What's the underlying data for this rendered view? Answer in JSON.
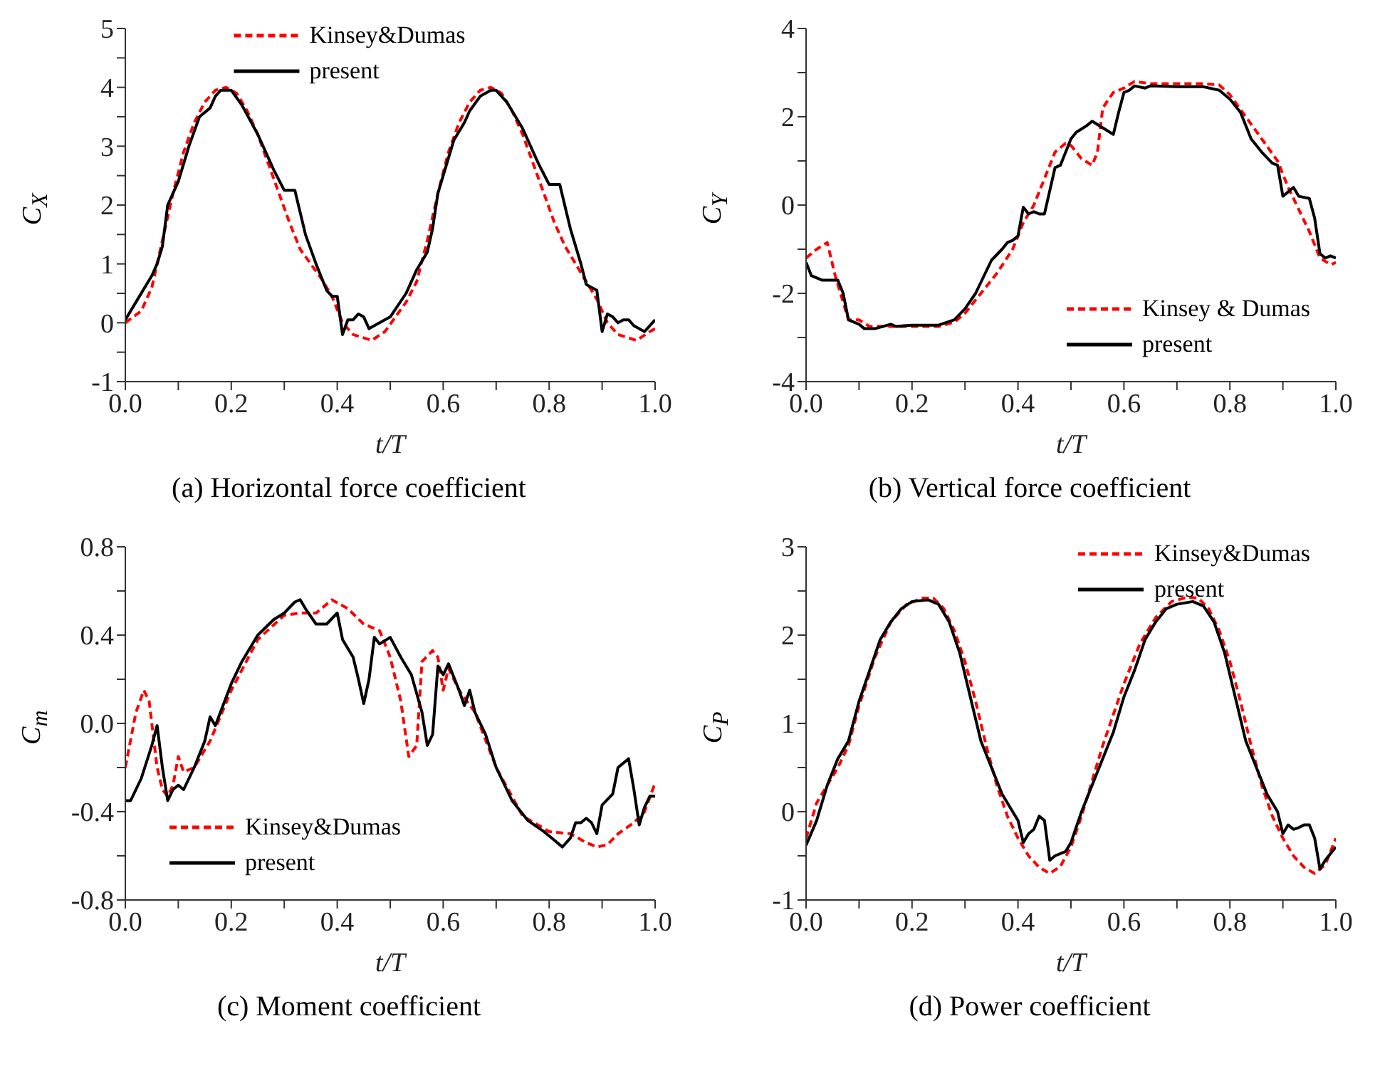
{
  "chart_data": [
    {
      "type": "line",
      "title": "(a) Horizontal force coefficient",
      "xlabel": "t/T",
      "ylabel": "C$_{X}$",
      "legend": "top",
      "grid": false,
      "marker": "none",
      "xlim": [
        0,
        1
      ],
      "xticks": [
        {
          "value": 0,
          "label": "0.0"
        },
        {
          "value": 0.1,
          "label": null
        },
        0.2,
        {
          "value": 0.3,
          "label": null
        },
        0.4,
        {
          "value": 0.5,
          "label": null
        },
        0.6,
        {
          "value": 0.7,
          "label": null
        },
        0.8,
        {
          "value": 0.9,
          "label": null
        },
        {
          "value": 1,
          "label": "1.0"
        }
      ],
      "ylim": [
        -1,
        5
      ],
      "yticks": [
        -1,
        {
          "value": -0.5,
          "label": null
        },
        0,
        {
          "value": 0.5,
          "label": null
        },
        1,
        {
          "value": 1.5,
          "label": null
        },
        2,
        {
          "value": 2.5,
          "label": null
        },
        3,
        {
          "value": 3.5,
          "label": null
        },
        4,
        {
          "value": 4.5,
          "label": null
        },
        5
      ],
      "series": [
        {
          "name": "Kinsey&Dumas",
          "color": "#ff0000",
          "line_style": "dashed",
          "x": [
            0,
            0.03,
            0.05,
            0.07,
            0.09,
            0.11,
            0.13,
            0.15,
            0.17,
            0.19,
            0.21,
            0.23,
            0.25,
            0.27,
            0.29,
            0.31,
            0.33,
            0.35,
            0.37,
            0.39,
            0.41,
            0.43,
            0.465,
            0.49,
            0.51,
            0.53,
            0.55,
            0.57,
            0.59,
            0.61,
            0.63,
            0.65,
            0.67,
            0.69,
            0.71,
            0.73,
            0.75,
            0.77,
            0.79,
            0.81,
            0.83,
            0.85,
            0.87,
            0.89,
            0.91,
            0.93,
            0.965,
            0.99,
            1
          ],
          "values": [
            0,
            0.2,
            0.6,
            1.4,
            2.2,
            2.9,
            3.4,
            3.75,
            3.95,
            4,
            3.9,
            3.6,
            3.2,
            2.7,
            2.2,
            1.7,
            1.25,
            1,
            0.75,
            0.45,
            0,
            -0.2,
            -0.3,
            -0.15,
            0.1,
            0.35,
            0.7,
            1.4,
            2.2,
            2.9,
            3.4,
            3.75,
            3.95,
            4,
            3.9,
            3.6,
            3.2,
            2.7,
            2.2,
            1.7,
            1.3,
            1,
            0.7,
            0.4,
            0,
            -0.2,
            -0.3,
            -0.15,
            -0.1
          ]
        },
        {
          "name": "present",
          "color": "#000000",
          "line_style": "solid",
          "x": [
            0,
            0.02,
            0.05,
            0.06,
            0.07,
            0.08,
            0.1,
            0.12,
            0.14,
            0.16,
            0.17,
            0.18,
            0.2,
            0.22,
            0.25,
            0.28,
            0.3,
            0.32,
            0.34,
            0.36,
            0.38,
            0.39,
            0.4,
            0.41,
            0.42,
            0.43,
            0.44,
            0.45,
            0.46,
            0.48,
            0.5,
            0.53,
            0.55,
            0.57,
            0.58,
            0.59,
            0.6,
            0.62,
            0.64,
            0.65,
            0.67,
            0.69,
            0.7,
            0.72,
            0.75,
            0.78,
            0.8,
            0.82,
            0.84,
            0.86,
            0.87,
            0.88,
            0.89,
            0.9,
            0.91,
            0.92,
            0.93,
            0.94,
            0.95,
            0.96,
            0.98,
            1
          ],
          "values": [
            0.05,
            0.35,
            0.8,
            1,
            1.3,
            2,
            2.4,
            3,
            3.5,
            3.65,
            3.85,
            3.95,
            3.95,
            3.7,
            3.2,
            2.6,
            2.25,
            2.25,
            1.5,
            1,
            0.55,
            0.45,
            0.45,
            -0.2,
            0.05,
            0.05,
            0.15,
            0.1,
            -0.1,
            0,
            0.1,
            0.5,
            0.9,
            1.2,
            1.6,
            2.2,
            2.5,
            3.1,
            3.4,
            3.6,
            3.85,
            3.95,
            3.95,
            3.75,
            3.3,
            2.7,
            2.35,
            2.35,
            1.6,
            1,
            0.65,
            0.6,
            0.55,
            -0.15,
            0.15,
            0.1,
            0,
            0.05,
            0.05,
            -0.05,
            -0.15,
            0.05
          ]
        }
      ]
    },
    {
      "type": "line",
      "title": "(b) Vertical force coefficient",
      "xlabel": "t/T",
      "ylabel": "C$_{Y}$",
      "legend": "bottom right",
      "grid": false,
      "marker": "none",
      "xlim": [
        0,
        1
      ],
      "xticks": [
        {
          "value": 0,
          "label": "0.0"
        },
        {
          "value": 0.1,
          "label": null
        },
        0.2,
        {
          "value": 0.3,
          "label": null
        },
        0.4,
        {
          "value": 0.5,
          "label": null
        },
        0.6,
        {
          "value": 0.7,
          "label": null
        },
        0.8,
        {
          "value": 0.9,
          "label": null
        },
        {
          "value": 1,
          "label": "1.0"
        }
      ],
      "ylim": [
        -4,
        4
      ],
      "yticks": [
        -4,
        {
          "value": -3,
          "label": null
        },
        -2,
        {
          "value": -1,
          "label": null
        },
        0,
        {
          "value": 1,
          "label": null
        },
        2,
        {
          "value": 3,
          "label": null
        },
        4
      ],
      "series": [
        {
          "name": "Kinsey & Dumas",
          "color": "#ff0000",
          "line_style": "dashed",
          "x": [
            0,
            0.02,
            0.04,
            0.055,
            0.07,
            0.08,
            0.1,
            0.12,
            0.2,
            0.25,
            0.28,
            0.3,
            0.33,
            0.36,
            0.39,
            0.41,
            0.43,
            0.45,
            0.47,
            0.49,
            0.5,
            0.52,
            0.54,
            0.55,
            0.56,
            0.58,
            0.6,
            0.62,
            0.65,
            0.7,
            0.75,
            0.78,
            0.8,
            0.83,
            0.86,
            0.89,
            0.91,
            0.93,
            0.95,
            0.97,
            0.99,
            1
          ],
          "values": [
            -1.2,
            -1,
            -0.85,
            -1.6,
            -2.2,
            -2.6,
            -2.6,
            -2.75,
            -2.75,
            -2.75,
            -2.65,
            -2.45,
            -2,
            -1.55,
            -1,
            -0.4,
            0,
            0.6,
            1.2,
            1.4,
            1.35,
            1.05,
            0.9,
            1.2,
            2.2,
            2.55,
            2.65,
            2.8,
            2.75,
            2.75,
            2.75,
            2.72,
            2.5,
            2,
            1.5,
            1,
            0.4,
            -0.1,
            -0.6,
            -1.2,
            -1.35,
            -1.3
          ]
        },
        {
          "name": "present",
          "color": "#000000",
          "line_style": "solid",
          "x": [
            0,
            0.01,
            0.03,
            0.06,
            0.07,
            0.08,
            0.09,
            0.1,
            0.11,
            0.13,
            0.16,
            0.17,
            0.2,
            0.25,
            0.28,
            0.3,
            0.32,
            0.34,
            0.35,
            0.37,
            0.38,
            0.39,
            0.4,
            0.41,
            0.42,
            0.43,
            0.44,
            0.45,
            0.47,
            0.48,
            0.5,
            0.51,
            0.53,
            0.54,
            0.56,
            0.58,
            0.59,
            0.6,
            0.61,
            0.62,
            0.64,
            0.65,
            0.7,
            0.75,
            0.78,
            0.8,
            0.82,
            0.84,
            0.86,
            0.88,
            0.89,
            0.9,
            0.92,
            0.93,
            0.95,
            0.96,
            0.97,
            0.98,
            0.99,
            1
          ],
          "values": [
            -1.3,
            -1.6,
            -1.7,
            -1.7,
            -2,
            -2.6,
            -2.65,
            -2.7,
            -2.8,
            -2.8,
            -2.7,
            -2.75,
            -2.72,
            -2.72,
            -2.6,
            -2.35,
            -2,
            -1.5,
            -1.25,
            -1,
            -0.85,
            -0.8,
            -0.7,
            -0.05,
            -0.2,
            -0.15,
            -0.2,
            -0.2,
            0.85,
            0.9,
            1.5,
            1.65,
            1.8,
            1.9,
            1.75,
            1.6,
            2.1,
            2.55,
            2.6,
            2.7,
            2.65,
            2.7,
            2.68,
            2.68,
            2.6,
            2.4,
            2.1,
            1.5,
            1.2,
            0.95,
            0.9,
            0.2,
            0.4,
            0.2,
            0.15,
            -0.3,
            -1.1,
            -1.2,
            -1.15,
            -1.2
          ]
        }
      ]
    },
    {
      "type": "line",
      "title": "(c) Moment coefficient",
      "xlabel": "t/T",
      "ylabel": "C$_{m}$",
      "legend": "bottom left",
      "grid": false,
      "marker": "none",
      "xlim": [
        0,
        1
      ],
      "xticks": [
        {
          "value": 0,
          "label": "0.0"
        },
        {
          "value": 0.1,
          "label": null
        },
        0.2,
        {
          "value": 0.3,
          "label": null
        },
        0.4,
        {
          "value": 0.5,
          "label": null
        },
        0.6,
        {
          "value": 0.7,
          "label": null
        },
        0.8,
        {
          "value": 0.9,
          "label": null
        },
        {
          "value": 1,
          "label": "1.0"
        }
      ],
      "ylim": [
        -0.8,
        0.8
      ],
      "yticks": [
        -0.8,
        {
          "value": -0.6,
          "label": null
        },
        -0.4,
        {
          "value": -0.2,
          "label": null
        },
        {
          "value": 0,
          "label": "0.0"
        },
        {
          "value": 0.2,
          "label": null
        },
        0.4,
        {
          "value": 0.6,
          "label": null
        },
        0.8
      ],
      "series": [
        {
          "name": "Kinsey&Dumas",
          "color": "#ff0000",
          "line_style": "dashed",
          "x": [
            0,
            0.02,
            0.035,
            0.045,
            0.06,
            0.07,
            0.08,
            0.09,
            0.1,
            0.11,
            0.13,
            0.16,
            0.2,
            0.25,
            0.3,
            0.33,
            0.36,
            0.39,
            0.42,
            0.45,
            0.48,
            0.5,
            0.52,
            0.535,
            0.55,
            0.56,
            0.58,
            0.59,
            0.6,
            0.61,
            0.63,
            0.66,
            0.7,
            0.75,
            0.8,
            0.84,
            0.87,
            0.89,
            0.91,
            0.93,
            0.96,
            0.98,
            1
          ],
          "values": [
            -0.2,
            0.05,
            0.15,
            0.1,
            -0.2,
            -0.3,
            -0.33,
            -0.28,
            -0.15,
            -0.22,
            -0.2,
            -0.08,
            0.15,
            0.38,
            0.49,
            0.5,
            0.5,
            0.56,
            0.52,
            0.45,
            0.42,
            0.3,
            0.1,
            -0.15,
            -0.1,
            0.28,
            0.33,
            0.3,
            0.15,
            0.25,
            0.15,
            0.05,
            -0.2,
            -0.42,
            -0.49,
            -0.5,
            -0.54,
            -0.56,
            -0.55,
            -0.5,
            -0.45,
            -0.4,
            -0.27
          ]
        },
        {
          "name": "present",
          "color": "#000000",
          "line_style": "solid",
          "x": [
            0,
            0.01,
            0.03,
            0.05,
            0.06,
            0.07,
            0.08,
            0.09,
            0.1,
            0.11,
            0.13,
            0.15,
            0.16,
            0.17,
            0.2,
            0.22,
            0.25,
            0.28,
            0.3,
            0.32,
            0.33,
            0.34,
            0.36,
            0.38,
            0.4,
            0.41,
            0.43,
            0.44,
            0.45,
            0.46,
            0.47,
            0.48,
            0.5,
            0.52,
            0.54,
            0.56,
            0.57,
            0.58,
            0.59,
            0.6,
            0.61,
            0.63,
            0.64,
            0.65,
            0.66,
            0.68,
            0.7,
            0.73,
            0.76,
            0.79,
            0.81,
            0.825,
            0.84,
            0.85,
            0.86,
            0.87,
            0.88,
            0.89,
            0.9,
            0.92,
            0.93,
            0.95,
            0.96,
            0.97,
            0.98,
            0.99,
            1
          ],
          "values": [
            -0.35,
            -0.35,
            -0.25,
            -0.1,
            -0.01,
            -0.2,
            -0.35,
            -0.3,
            -0.28,
            -0.3,
            -0.2,
            -0.08,
            0.03,
            -0.01,
            0.18,
            0.28,
            0.4,
            0.47,
            0.5,
            0.55,
            0.56,
            0.52,
            0.45,
            0.45,
            0.5,
            0.38,
            0.3,
            0.2,
            0.09,
            0.2,
            0.39,
            0.36,
            0.39,
            0.3,
            0.22,
            0.05,
            -0.1,
            -0.05,
            0.26,
            0.22,
            0.27,
            0.15,
            0.08,
            0.15,
            0.05,
            -0.05,
            -0.2,
            -0.35,
            -0.44,
            -0.49,
            -0.53,
            -0.56,
            -0.52,
            -0.45,
            -0.45,
            -0.43,
            -0.45,
            -0.5,
            -0.37,
            -0.32,
            -0.2,
            -0.16,
            -0.3,
            -0.46,
            -0.38,
            -0.33,
            -0.33
          ]
        }
      ]
    },
    {
      "type": "line",
      "title": "(d) Power coefficient",
      "xlabel": "t/T",
      "ylabel": "C$_{P}$",
      "legend": "top right",
      "grid": false,
      "marker": "none",
      "xlim": [
        0,
        1
      ],
      "xticks": [
        {
          "value": 0,
          "label": "0.0"
        },
        {
          "value": 0.1,
          "label": null
        },
        0.2,
        {
          "value": 0.3,
          "label": null
        },
        0.4,
        {
          "value": 0.5,
          "label": null
        },
        0.6,
        {
          "value": 0.7,
          "label": null
        },
        0.8,
        {
          "value": 0.9,
          "label": null
        },
        {
          "value": 1,
          "label": "1.0"
        }
      ],
      "ylim": [
        -1,
        3
      ],
      "yticks": [
        -1,
        {
          "value": -0.5,
          "label": null
        },
        0,
        {
          "value": 0.5,
          "label": null
        },
        1,
        {
          "value": 1.5,
          "label": null
        },
        2,
        {
          "value": 2.5,
          "label": null
        },
        3
      ],
      "series": [
        {
          "name": "Kinsey&Dumas",
          "color": "#ff0000",
          "line_style": "dashed",
          "x": [
            0,
            0.02,
            0.04,
            0.06,
            0.08,
            0.1,
            0.13,
            0.16,
            0.19,
            0.22,
            0.24,
            0.26,
            0.28,
            0.3,
            0.32,
            0.34,
            0.36,
            0.38,
            0.4,
            0.42,
            0.44,
            0.46,
            0.48,
            0.5,
            0.52,
            0.54,
            0.56,
            0.58,
            0.6,
            0.63,
            0.66,
            0.69,
            0.72,
            0.74,
            0.76,
            0.78,
            0.8,
            0.82,
            0.84,
            0.86,
            0.88,
            0.9,
            0.92,
            0.94,
            0.96,
            0.98,
            1
          ],
          "values": [
            -0.3,
            0.1,
            0.3,
            0.5,
            0.75,
            1.2,
            1.75,
            2.15,
            2.35,
            2.42,
            2.42,
            2.3,
            2.05,
            1.7,
            1.25,
            0.75,
            0.3,
            -0.05,
            -0.3,
            -0.5,
            -0.63,
            -0.7,
            -0.62,
            -0.4,
            -0.05,
            0.35,
            0.75,
            1.1,
            1.45,
            1.9,
            2.2,
            2.38,
            2.43,
            2.42,
            2.3,
            2.05,
            1.7,
            1.25,
            0.75,
            0.3,
            -0.05,
            -0.3,
            -0.5,
            -0.63,
            -0.7,
            -0.6,
            -0.3
          ]
        },
        {
          "name": "present",
          "color": "#000000",
          "line_style": "solid",
          "x": [
            0,
            0.02,
            0.04,
            0.06,
            0.08,
            0.1,
            0.12,
            0.14,
            0.16,
            0.18,
            0.2,
            0.23,
            0.25,
            0.27,
            0.29,
            0.31,
            0.33,
            0.35,
            0.37,
            0.39,
            0.4,
            0.41,
            0.42,
            0.43,
            0.44,
            0.45,
            0.46,
            0.47,
            0.49,
            0.5,
            0.52,
            0.54,
            0.56,
            0.58,
            0.6,
            0.62,
            0.64,
            0.66,
            0.68,
            0.7,
            0.73,
            0.75,
            0.77,
            0.79,
            0.81,
            0.83,
            0.85,
            0.87,
            0.89,
            0.9,
            0.91,
            0.92,
            0.93,
            0.94,
            0.95,
            0.96,
            0.97,
            0.98,
            1
          ],
          "values": [
            -0.38,
            -0.1,
            0.3,
            0.6,
            0.8,
            1.25,
            1.6,
            1.95,
            2.15,
            2.3,
            2.38,
            2.4,
            2.35,
            2.15,
            1.8,
            1.3,
            0.8,
            0.5,
            0.2,
            0,
            -0.1,
            -0.35,
            -0.25,
            -0.2,
            -0.05,
            -0.1,
            -0.55,
            -0.5,
            -0.45,
            -0.35,
            0,
            0.3,
            0.6,
            0.9,
            1.3,
            1.6,
            1.95,
            2.15,
            2.3,
            2.35,
            2.38,
            2.33,
            2.15,
            1.8,
            1.3,
            0.8,
            0.5,
            0.2,
            0,
            -0.25,
            -0.15,
            -0.2,
            -0.18,
            -0.15,
            -0.15,
            -0.3,
            -0.65,
            -0.55,
            -0.4
          ]
        }
      ]
    }
  ]
}
